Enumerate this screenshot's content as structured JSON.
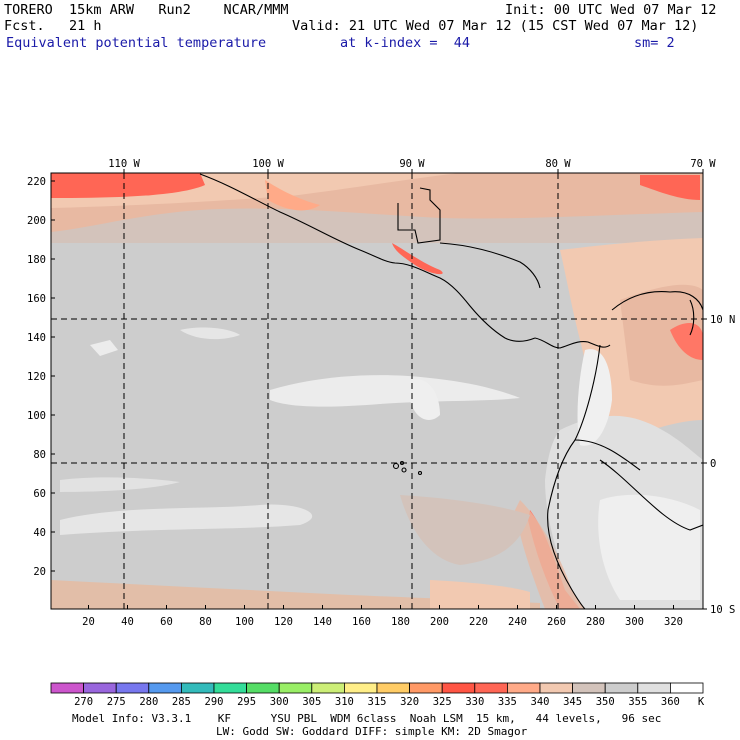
{
  "header": {
    "title_left": "TORERO  15km ARW   Run2    NCAR/MMM",
    "init": "Init: 00 UTC Wed 07 Mar 12",
    "fcst": "Fcst.   21 h",
    "valid": "Valid: 21 UTC Wed 07 Mar 12 (15 CST Wed 07 Mar 12)",
    "field": "Equivalent potential temperature",
    "level": "at k-index =  44",
    "smoothing": "sm= 2"
  },
  "map": {
    "top_lon_labels": [
      "110 W",
      "100 W",
      "90 W",
      "80 W",
      "70 W"
    ],
    "right_lat_labels": [
      "10 N",
      "0",
      "10 S"
    ],
    "y_ticks": [
      "220",
      "200",
      "180",
      "160",
      "140",
      "120",
      "100",
      "80",
      "60",
      "40",
      "20"
    ],
    "x_ticks": [
      "20",
      "40",
      "60",
      "80",
      "100",
      "120",
      "140",
      "160",
      "180",
      "200",
      "220",
      "240",
      "260",
      "280",
      "300",
      "320"
    ]
  },
  "colorbar": {
    "labels": [
      "270",
      "275",
      "280",
      "285",
      "290",
      "295",
      "300",
      "305",
      "310",
      "315",
      "320",
      "325",
      "330",
      "335",
      "340",
      "345",
      "350",
      "355",
      "360"
    ],
    "unit": "K",
    "colors": [
      "#cc55cc",
      "#9966dd",
      "#7777ee",
      "#5599ee",
      "#33bbbb",
      "#33dd99",
      "#55dd66",
      "#99ee66",
      "#ccee77",
      "#ffee88",
      "#ffcc66",
      "#ff9966",
      "#ff5544",
      "#ff6655",
      "#ffaa88",
      "#f2c9b1",
      "#d3c3bb",
      "#cdcdcd",
      "#e0e0e0",
      "#ffffff"
    ]
  },
  "footer": {
    "line1": "Model Info: V3.3.1    KF      YSU PBL  WDM 6class  Noah LSM  15 km,   44 levels,   96 sec",
    "line2": "LW: Godd SW: Goddard DIFF: simple KM: 2D Smagor"
  }
}
